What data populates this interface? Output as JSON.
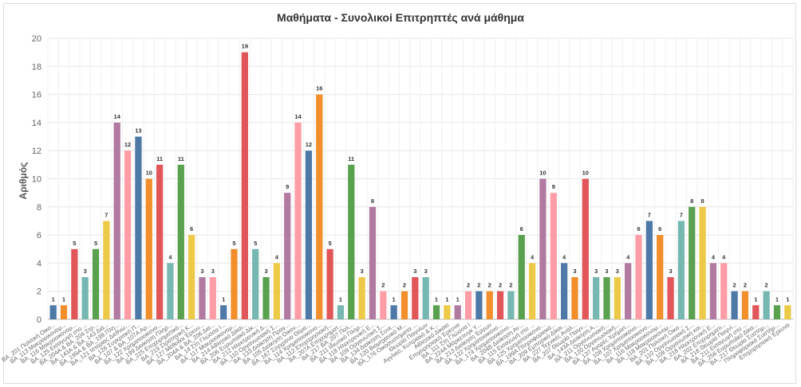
{
  "chart_data": {
    "type": "bar",
    "title": "Μαθήματα - Συνολικοί Επιτρηπτές ανά μάθημα",
    "xlabel": "",
    "ylabel": "Αριθμός",
    "ylim": [
      0,
      20
    ],
    "yticks": [
      0,
      2,
      4,
      6,
      8,
      10,
      12,
      14,
      16,
      18,
      20
    ],
    "grid": true,
    "palette": [
      "#4e79a7",
      "#f28e2b",
      "#e15759",
      "#76b7b2",
      "#59a14f",
      "#edc948",
      "#b07aa1",
      "#ff9da7"
    ],
    "categories": [
      "ΒΑ_201 Πολιτική Οικο...",
      "ΒΑ_113 Μακροοικονομ...",
      "ΒΑ_116 Μακροοικονομ...",
      "ΒΑ_125 Εισαγωγή στο ...",
      "ΒΑ_204Α & ΒΑ_204 Στρ...",
      "ΒΑ_143Α & ΒΑ_143 Διά...",
      "ΒΑ_199Α & ΒΑ_199 Πλη...",
      "ΒΑ_121 Ιστορίας Διεθνώ...",
      "ΒΑ_126 Συγκριτική Π...",
      "ΒΑ_107 & ΒΑ_107Α Αρ...",
      "ΒΑ_122 Χρηματοοικονο...",
      "ΒΑ_199 Διοίκηση Πληρ...",
      "ΒΑ_225 Επιχειρηματικό...",
      "ΒΑ_219 Στρατηγική Κ...",
      "ΒΑ_127 Μέθοδοι Έρευν...",
      "ΒΑ_204Α & ΒΑ_206 Δια...",
      "ΒΑ_14 Στη Γλώσσα Ι...",
      "ΒΑ_117 Μακροοικονομ...",
      "ΒΑ_214 Αθλητικό Δίκαι...",
      "ΒΑ_206 Ευρωπαϊκό Δίκ...",
      "ΒΑ_212 Ηλεκτρονική Δ...",
      "ΒΑ_110 Οργανωσιακή Σ...",
      "ΒΑ_133 Διοίκηση Πραγ...",
      "ΒΑ_105 Διοίκηση Οικον...",
      "ΒΑ_167 Σύγχρονα Θέμα...",
      "ΒΑ_114 Χρηματοοικονο...",
      "ΒΑ_112 Επιχειρησιακή...",
      "ΒΑ_207Α Επιχειρηματ...",
      "ΒΑ_217 ΒΑ_207 Πολ...",
      "ΒΑ_211 Ιδιωτικό Πληρ...",
      "ΒΑ_118 Ηλεκτρονική Ε...",
      "ΒΑ_109 Οργανωτική Σ...",
      "ΒΑ_134 Διοίκηση Συνε...",
      "ΒΑ_120 Βιομηχανικό Μ...",
      "ΒΑ_176 Οικοσυστήματα ...",
      "Θεωρία Παιγνίων",
      "Αγγλικό, Κυπριακό & Κ...",
      "Αθλητικό Δίκαιο",
      "Επιχειρησιακή Έρευνα",
      "ΒΑ_111 Στη Γλώσσα Ι",
      "ΒΑ_224Α Μάρκετινγκ Υ...",
      "ΒΑ_213 Διοίκηση Έργων",
      "ΒΑ_122 Χρηματοοικονο...",
      "ΒΑ_174 Χρηματοοικονο...",
      "ΒΑ_204Β Διοίκηση Αν...",
      "ΒΑ_115 Εισαγωγή στο ...",
      "ΒΑ_125 Χρηματοοικονο...",
      "ΒΑ_199Α Πληροφοριακά...",
      "ΒΑ_209 Εμπορικό Δίκαι...",
      "ΒΑ_227 Τεχνικές Ανάλ...",
      "ΒΑ_207 Θεωρία Παιγν...",
      "ΒΑ_143Α Διοίκηση Α...",
      "ΒΑ_211 Οργανωσιακή...",
      "ΒΑ_120 Οργανωσιακή...",
      "ΒΑ_137 Αγορές Χρήματ...",
      "ΒΑ_108 Χρηματοοικονο...",
      "ΒΑ_107 Χρηματοοικονο...",
      "ΒΑ_116 Μακροοικονομ...",
      "ΒΑ_118 Μακροοικονομ...",
      "ΒΑ_201 Πολιτική Οικο...",
      "ΒΑ_110 Οργανωσιακή Σ...",
      "ΒΑ_109 Οργανωτική και...",
      "ΒΑ_218 Ηλεκτρονική Ε...",
      "ΒΑ_202 Επιχειρηματι...",
      "ΒΑ_218 Θεωρία Παιγνί...",
      "ΒΑ_211 Εισαγωγή στο ...",
      "ΒΑ_256 Ευρωπαϊκό Δίκα...",
      "ΒΑ_217 Θεωρία Συστημ...",
      "Πληροφοριακά Συστήμ...",
      "Επιχειρησιακή Έρευνα"
    ],
    "values": [
      1,
      1,
      5,
      3,
      5,
      7,
      14,
      12,
      13,
      10,
      11,
      4,
      11,
      6,
      3,
      3,
      1,
      5,
      19,
      5,
      3,
      4,
      9,
      14,
      12,
      16,
      5,
      1,
      11,
      3,
      8,
      2,
      1,
      2,
      3,
      3,
      1,
      1,
      1,
      2,
      2,
      2,
      2,
      2,
      6,
      4,
      10,
      9,
      4,
      3,
      10,
      3,
      3,
      3,
      4,
      6,
      7,
      6,
      3,
      7,
      8,
      8,
      4,
      4,
      2,
      2,
      1,
      2,
      1,
      1
    ]
  }
}
